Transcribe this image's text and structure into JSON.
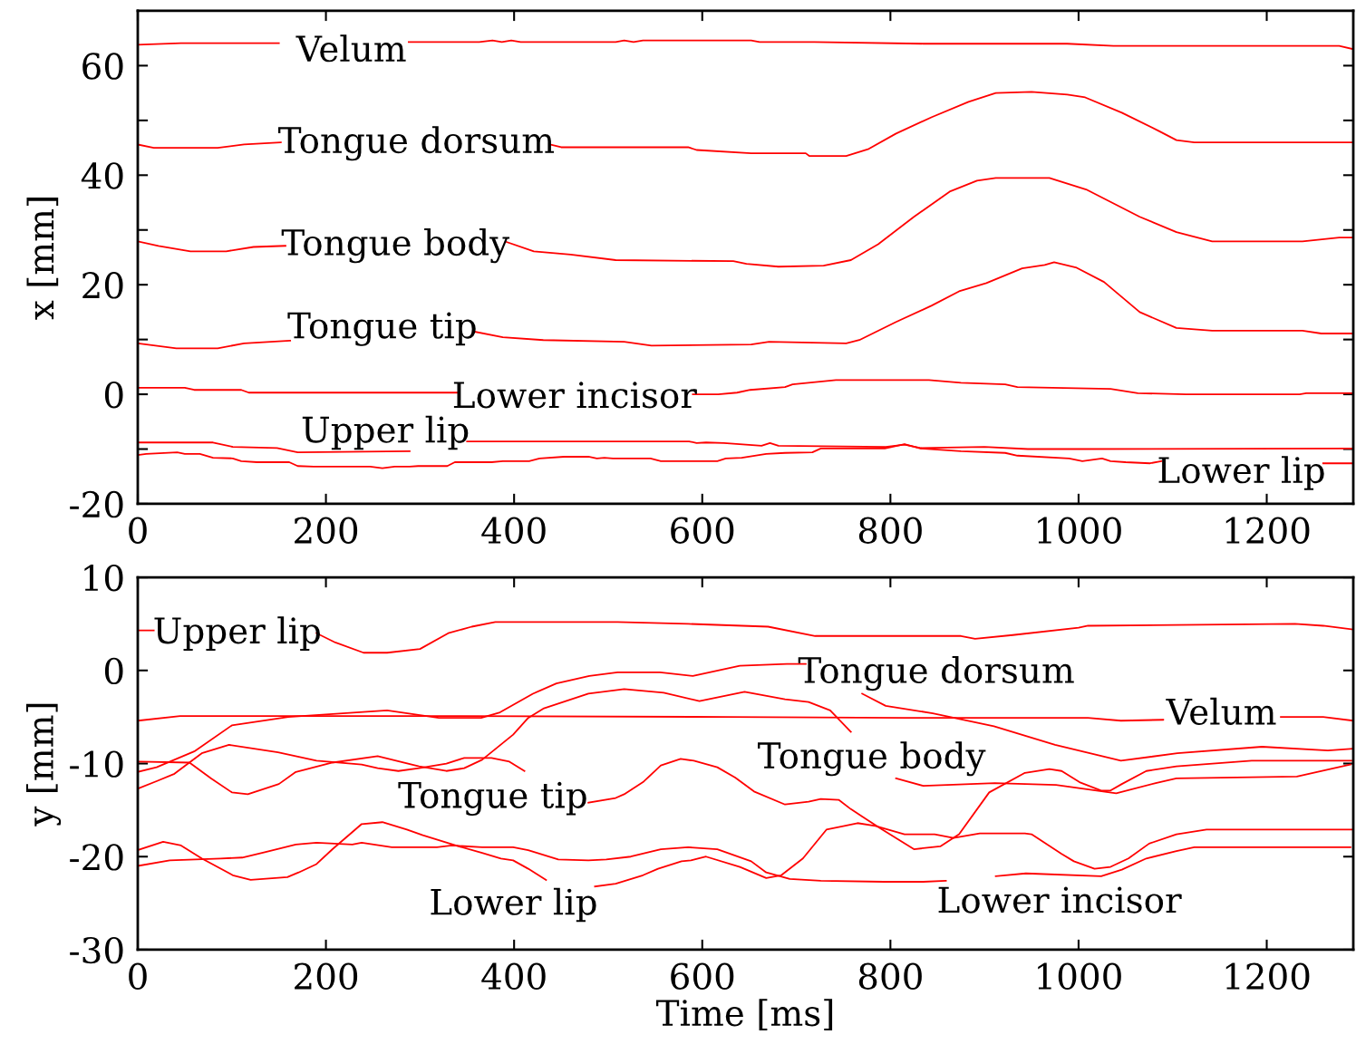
{
  "chart_data": [
    {
      "type": "line",
      "ylabel": "x [mm]",
      "xlim": [
        0,
        1292
      ],
      "xticks": [
        0,
        200,
        400,
        600,
        800,
        1000,
        1200
      ],
      "ylim": [
        -20,
        70
      ],
      "yticks": [
        -20,
        {
          "value": -10,
          "label": null
        },
        0,
        {
          "value": 10,
          "label": null
        },
        20,
        {
          "value": 30,
          "label": null
        },
        40,
        {
          "value": 50,
          "label": null
        },
        60
      ],
      "grid": false,
      "marker": "none",
      "line_style": "solid",
      "series": [
        {
          "name": "Velum",
          "color": "#ff0000",
          "x": [
            0,
            46,
            150,
            230,
            288,
            363,
            377,
            387,
            397,
            407,
            508,
            517,
            527,
            537,
            652,
            661,
            719,
            835,
            988,
            1037,
            1219,
            1277,
            1292
          ],
          "values": [
            63.8,
            64.1,
            64.1,
            null,
            64.3,
            64.3,
            64.6,
            64.3,
            64.6,
            64.3,
            64.3,
            64.6,
            64.3,
            64.6,
            64.6,
            64.3,
            64.3,
            64.0,
            64.0,
            63.6,
            63.6,
            63.6,
            63.0
          ]
        },
        {
          "name": "Tongue dorsum",
          "color": "#ff0000",
          "x": [
            0,
            17,
            85,
            113,
            152,
            300,
            438,
            450,
            585,
            594,
            652,
            710,
            714,
            753,
            777,
            806,
            844,
            883,
            912,
            950,
            988,
            1007,
            1046,
            1085,
            1104,
            1123,
            1292
          ],
          "values": [
            45.6,
            45.0,
            45.0,
            45.6,
            46.0,
            null,
            45.6,
            45.1,
            45.1,
            44.6,
            44.0,
            44.0,
            43.5,
            43.5,
            44.8,
            47.6,
            50.6,
            53.4,
            55.0,
            55.2,
            54.7,
            54.2,
            51.4,
            48.1,
            46.4,
            46.0,
            46.0
          ]
        },
        {
          "name": "Tongue body",
          "color": "#ff0000",
          "x": [
            0,
            22,
            56,
            94,
            123,
            157,
            270,
            392,
            421,
            460,
            508,
            633,
            647,
            681,
            729,
            758,
            787,
            825,
            863,
            892,
            912,
            969,
            1008,
            1065,
            1104,
            1142,
            1238,
            1277,
            1292
          ],
          "values": [
            27.9,
            27.1,
            26.1,
            26.1,
            26.9,
            27.1,
            null,
            27.8,
            26.1,
            25.5,
            24.5,
            24.3,
            23.8,
            23.3,
            23.5,
            24.5,
            27.4,
            32.4,
            37.0,
            39.0,
            39.5,
            39.5,
            37.4,
            32.4,
            29.6,
            27.9,
            27.9,
            28.6,
            28.6
          ]
        },
        {
          "name": "Tongue tip",
          "color": "#ff0000",
          "x": [
            0,
            41,
            85,
            113,
            162,
            260,
            359,
            388,
            431,
            517,
            546,
            652,
            671,
            753,
            767,
            806,
            844,
            873,
            902,
            940,
            964,
            974,
            998,
            1027,
            1065,
            1104,
            1142,
            1238,
            1258,
            1292
          ],
          "values": [
            9.3,
            8.4,
            8.4,
            9.3,
            9.8,
            null,
            11.4,
            10.4,
            9.9,
            9.6,
            8.9,
            9.1,
            9.6,
            9.3,
            9.9,
            13.2,
            16.2,
            18.8,
            20.3,
            23.0,
            23.6,
            24.1,
            23.1,
            20.5,
            15.0,
            12.1,
            11.6,
            11.6,
            11.1,
            11.1
          ]
        },
        {
          "name": "Lower incisor",
          "color": "#ff0000",
          "x": [
            0,
            50,
            60,
            110,
            118,
            341,
            470,
            590,
            617,
            637,
            651,
            688,
            696,
            742,
            841,
            875,
            922,
            935,
            1034,
            1063,
            1114,
            1235,
            1242,
            1292
          ],
          "values": [
            1.2,
            1.2,
            0.8,
            0.8,
            0.3,
            0.3,
            null,
            0.0,
            0.0,
            0.3,
            0.8,
            1.3,
            1.8,
            2.6,
            2.6,
            2.1,
            1.8,
            1.3,
            1.0,
            0.2,
            0.0,
            0.0,
            0.2,
            0.2
          ]
        },
        {
          "name": "Upper lip",
          "color": "#ff0000",
          "x": [
            0,
            80,
            101,
            148,
            170,
            289,
            320,
            350,
            586,
            594,
            604,
            623,
            663,
            672,
            681,
            795,
            815,
            832,
            900,
            946,
            1000,
            1292
          ],
          "values": [
            -8.8,
            -8.8,
            -9.6,
            -9.8,
            -10.6,
            -10.4,
            null,
            -8.6,
            -8.6,
            -8.9,
            -8.8,
            -8.9,
            -9.4,
            -8.9,
            -9.4,
            -9.6,
            -9.2,
            -9.8,
            -9.6,
            -10.0,
            -10.0,
            -9.9
          ]
        },
        {
          "name": "Lower lip",
          "color": "#ff0000",
          "x": [
            0,
            9,
            42,
            50,
            66,
            80,
            101,
            110,
            127,
            161,
            170,
            187,
            247,
            260,
            273,
            289,
            298,
            329,
            337,
            376,
            388,
            416,
            427,
            453,
            479,
            488,
            496,
            505,
            545,
            556,
            616,
            625,
            642,
            668,
            688,
            717,
            726,
            794,
            815,
            832,
            875,
            922,
            935,
            990,
            1004,
            1025,
            1034,
            1050,
            1076,
            1088,
            1200,
            1260,
            1292
          ],
          "values": [
            -11.1,
            -10.9,
            -10.6,
            -10.9,
            -10.9,
            -11.6,
            -11.7,
            -12.2,
            -12.4,
            -12.4,
            -13.1,
            -13.2,
            -13.2,
            -13.5,
            -13.2,
            -13.2,
            -13.1,
            -13.1,
            -12.4,
            -12.4,
            -12.2,
            -12.2,
            -11.7,
            -11.4,
            -11.4,
            -11.7,
            -11.6,
            -11.7,
            -11.7,
            -12.2,
            -12.2,
            -11.7,
            -11.6,
            -10.9,
            -10.7,
            -10.6,
            -9.9,
            -9.9,
            -9.1,
            -9.9,
            -10.4,
            -10.7,
            -11.2,
            -11.7,
            -12.2,
            -11.7,
            -12.2,
            -12.4,
            -12.6,
            -12.2,
            null,
            -12.6,
            -12.6
          ]
        }
      ]
    },
    {
      "type": "line",
      "xlabel": "Time [ms]",
      "ylabel": "y [mm]",
      "xlim": [
        0,
        1292
      ],
      "xticks": [
        0,
        200,
        400,
        600,
        800,
        1000,
        1200
      ],
      "ylim": [
        -30,
        10
      ],
      "yticks": [
        -30,
        -20,
        -10,
        0,
        10
      ],
      "grid": false,
      "marker": "none",
      "line_style": "solid",
      "series": [
        {
          "name": "Upper lip",
          "color": "#ff0000",
          "x": [
            0,
            17,
            100,
            190,
            210,
            240,
            265,
            300,
            330,
            355,
            380,
            510,
            585,
            670,
            720,
            875,
            890,
            930,
            1000,
            1010,
            1230,
            1260,
            1292
          ],
          "values": [
            4.3,
            4.3,
            null,
            4.0,
            3.0,
            1.9,
            1.9,
            2.3,
            4.0,
            4.7,
            5.2,
            5.2,
            5.0,
            4.7,
            3.7,
            3.7,
            3.4,
            3.8,
            4.6,
            4.8,
            5.0,
            4.8,
            4.4
          ]
        },
        {
          "name": "Velum",
          "color": "#ff0000",
          "x": [
            0,
            45,
            335,
            625,
            815,
            1010,
            1045,
            1090,
            1150,
            1215,
            1260,
            1292
          ],
          "values": [
            -5.4,
            -4.9,
            -4.9,
            -5.0,
            -5.1,
            -5.1,
            -5.4,
            -5.3,
            null,
            -5.0,
            -5.0,
            -5.4
          ]
        },
        {
          "name": "Tongue dorsum",
          "color": "#ff0000",
          "x": [
            0,
            20,
            60,
            100,
            160,
            265,
            320,
            365,
            385,
            420,
            445,
            480,
            510,
            555,
            590,
            640,
            690,
            710,
            740,
            770,
            795,
            845,
            910,
            975,
            1045,
            1105,
            1195,
            1265,
            1292
          ],
          "values": [
            -10.9,
            -10.4,
            -8.7,
            -5.9,
            -5.0,
            -4.3,
            -5.1,
            -5.1,
            -4.5,
            -2.5,
            -1.4,
            -0.6,
            -0.2,
            -0.2,
            -0.6,
            0.5,
            0.7,
            0.7,
            null,
            -2.5,
            -3.8,
            -4.6,
            -6.0,
            -8.0,
            -9.7,
            -8.9,
            -8.2,
            -8.6,
            -8.4
          ]
        },
        {
          "name": "Tongue body",
          "color": "#ff0000",
          "x": [
            0,
            55,
            78,
            100,
            117,
            150,
            168,
            207,
            255,
            299,
            328,
            347,
            366,
            399,
            415,
            431,
            479,
            517,
            559,
            597,
            645,
            688,
            713,
            736,
            758,
            780,
            806,
            835,
            911,
            976,
            1040,
            1082,
            1104,
            1232,
            1289
          ],
          "values": [
            -9.8,
            -9.9,
            -11.6,
            -13.1,
            -13.3,
            -12.2,
            -10.9,
            -9.9,
            -9.2,
            -10.3,
            -10.8,
            -10.5,
            -9.6,
            -6.9,
            -5.1,
            -4.1,
            -2.5,
            -2.0,
            -2.4,
            -3.3,
            -2.3,
            -3.1,
            -3.4,
            -4.3,
            -6.6,
            null,
            -11.6,
            -12.4,
            -12.1,
            -12.3,
            -13.2,
            -12.1,
            -11.6,
            -11.4,
            -10.1
          ]
        },
        {
          "name": "Tongue tip",
          "color": "#ff0000",
          "x": [
            0,
            20,
            39,
            68,
            97,
            149,
            190,
            238,
            255,
            277,
            299,
            328,
            347,
            376,
            395,
            411,
            445,
            479,
            508,
            517,
            537,
            556,
            577,
            591,
            616,
            635,
            655,
            688,
            713,
            726,
            745,
            758,
            770,
            790,
            825,
            853,
            873,
            905,
            943,
            969,
            982,
            1001,
            1024,
            1034,
            1046,
            1072,
            1104,
            1184,
            1290
          ],
          "values": [
            -12.7,
            -11.9,
            -11.1,
            -8.9,
            -8.0,
            -8.8,
            -9.7,
            -10.1,
            -10.5,
            -10.8,
            -10.5,
            -10.0,
            -9.4,
            -9.4,
            -9.8,
            -10.8,
            null,
            -14.2,
            -13.7,
            -13.3,
            -12.0,
            -10.2,
            -9.5,
            -9.7,
            -10.4,
            -11.5,
            -13.0,
            -14.4,
            -14.1,
            -13.8,
            -13.9,
            -14.9,
            -15.7,
            -17.0,
            -19.2,
            -18.9,
            -17.6,
            -13.1,
            -11.0,
            -10.6,
            -10.8,
            -12.0,
            -12.9,
            -12.9,
            -12.2,
            -10.8,
            -10.3,
            -9.7,
            -9.7
          ]
        },
        {
          "name": "Lower lip",
          "color": "#ff0000",
          "x": [
            0,
            27,
            46,
            68,
            101,
            120,
            159,
            171,
            190,
            207,
            238,
            260,
            286,
            303,
            338,
            366,
            386,
            399,
            415,
            434,
            460,
            486,
            508,
            537,
            553,
            578,
            588,
            604,
            640,
            668,
            684,
            707,
            732,
            751,
            765,
            784,
            815,
            847,
            867,
            895,
            943,
            950,
            982,
            995,
            1017,
            1034,
            1053,
            1075,
            1104,
            1136,
            1292
          ],
          "values": [
            -19.3,
            -18.4,
            -18.8,
            -20.2,
            -22.0,
            -22.5,
            -22.2,
            -21.7,
            -20.8,
            -19.2,
            -16.5,
            -16.3,
            -17.1,
            -17.7,
            -18.8,
            -19.6,
            -20.2,
            -20.4,
            -21.3,
            -22.5,
            null,
            -23.2,
            -22.9,
            -22.0,
            -21.3,
            -20.5,
            -20.4,
            -20.0,
            -21.1,
            -22.3,
            -22.0,
            -20.2,
            -17.1,
            -16.7,
            -16.4,
            -16.7,
            -17.6,
            -17.6,
            -18.0,
            -17.5,
            -17.5,
            -17.6,
            -19.7,
            -20.5,
            -21.3,
            -21.1,
            -20.2,
            -18.6,
            -17.6,
            -17.1,
            -17.1
          ]
        },
        {
          "name": "Lower incisor",
          "color": "#ff0000",
          "x": [
            0,
            34,
            88,
            111,
            136,
            168,
            190,
            228,
            238,
            270,
            318,
            334,
            366,
            399,
            415,
            447,
            479,
            498,
            524,
            556,
            585,
            616,
            652,
            668,
            693,
            726,
            793,
            835,
            859,
            885,
            912,
            944,
            1024,
            1046,
            1072,
            1104,
            1123,
            1289
          ],
          "values": [
            -21.0,
            -20.4,
            -20.2,
            -20.1,
            -19.5,
            -18.7,
            -18.5,
            -18.7,
            -18.5,
            -19.0,
            -19.0,
            -18.8,
            -19.0,
            -19.0,
            -19.3,
            -20.3,
            -20.4,
            -20.3,
            -20.0,
            -19.2,
            -19.0,
            -19.2,
            -20.5,
            -21.7,
            -22.4,
            -22.6,
            -22.7,
            -22.7,
            -22.6,
            null,
            -22.1,
            -21.8,
            -22.1,
            -21.4,
            -20.2,
            -19.4,
            -19.0,
            -19.0
          ]
        }
      ]
    }
  ]
}
